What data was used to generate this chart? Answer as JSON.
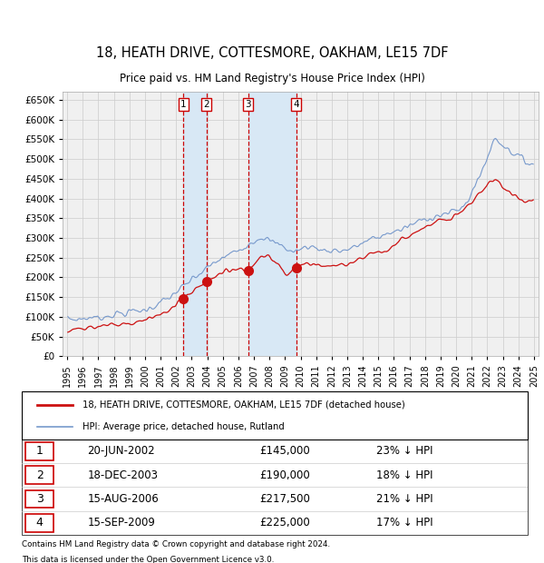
{
  "title": "18, HEATH DRIVE, COTTESMORE, OAKHAM, LE15 7DF",
  "subtitle": "Price paid vs. HM Land Registry's House Price Index (HPI)",
  "hpi_label": "HPI: Average price, detached house, Rutland",
  "property_label": "18, HEATH DRIVE, COTTESMORE, OAKHAM, LE15 7DF (detached house)",
  "hpi_color": "#7799cc",
  "property_color": "#cc1111",
  "sale_dot_color": "#cc1111",
  "background_color": "#ffffff",
  "grid_color": "#cccccc",
  "plot_bg_color": "#f0f0f0",
  "shade_color": "#d8e8f5",
  "ylim": [
    0,
    670000
  ],
  "yticks": [
    0,
    50000,
    100000,
    150000,
    200000,
    250000,
    300000,
    350000,
    400000,
    450000,
    500000,
    550000,
    600000,
    650000
  ],
  "xlim_start": 1994.7,
  "xlim_end": 2025.3,
  "sales": [
    {
      "num": 1,
      "date_str": "20-JUN-2002",
      "price": 145000,
      "pct": 23,
      "date_x": 2002.46
    },
    {
      "num": 2,
      "date_str": "18-DEC-2003",
      "price": 190000,
      "pct": 18,
      "date_x": 2003.96
    },
    {
      "num": 3,
      "date_str": "15-AUG-2006",
      "price": 217500,
      "pct": 21,
      "date_x": 2006.62
    },
    {
      "num": 4,
      "date_str": "15-SEP-2009",
      "price": 225000,
      "pct": 17,
      "date_x": 2009.71
    }
  ],
  "footer_line1": "Contains HM Land Registry data © Crown copyright and database right 2024.",
  "footer_line2": "This data is licensed under the Open Government Licence v3.0."
}
